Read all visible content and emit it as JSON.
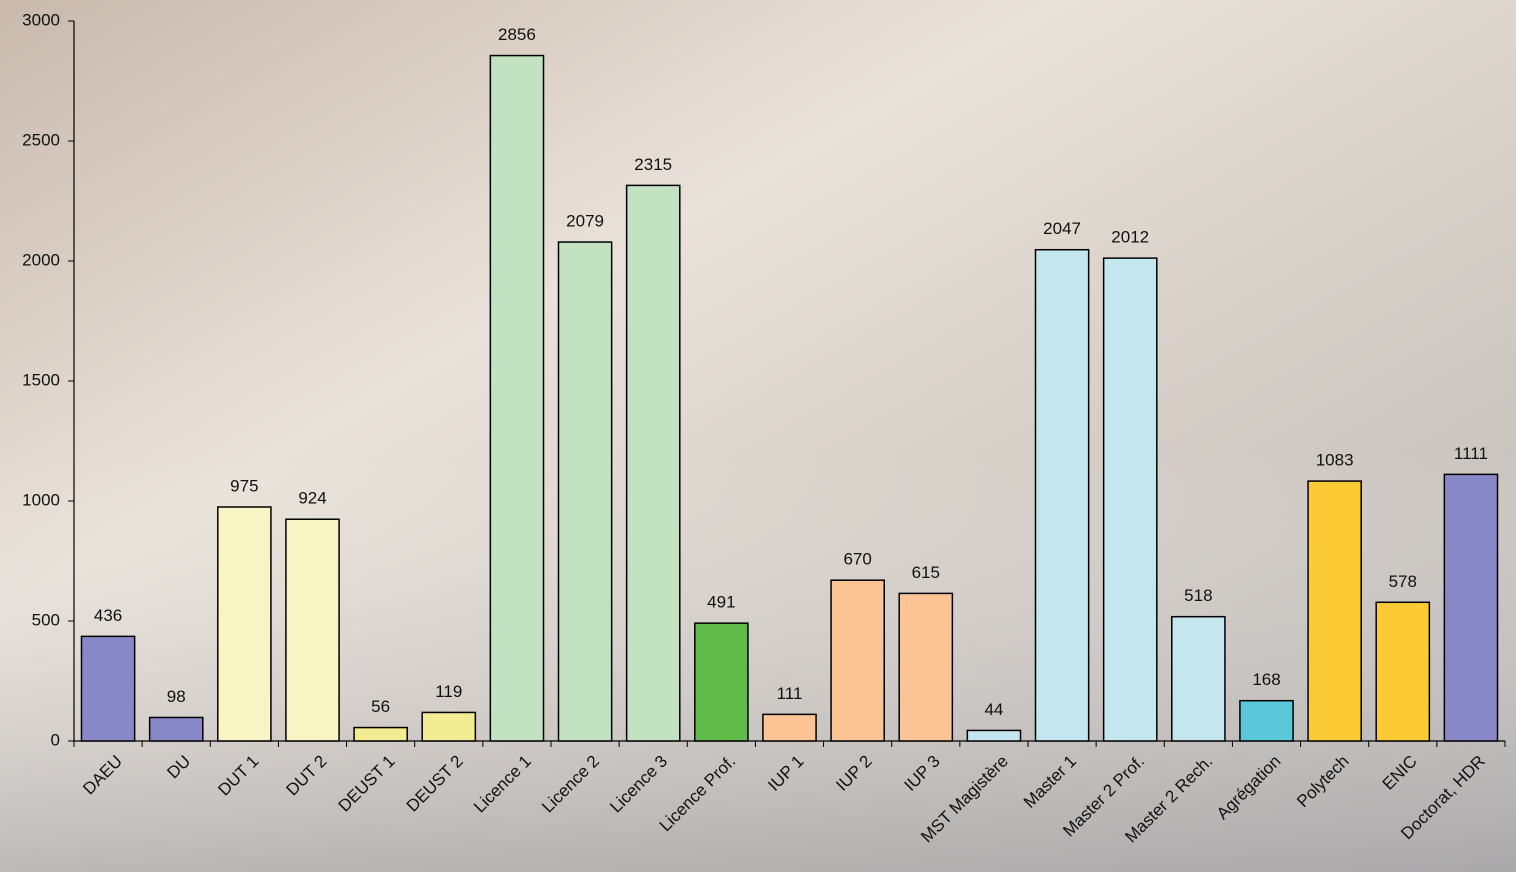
{
  "chart_data": {
    "type": "bar",
    "categories": [
      "DAEU",
      "DU",
      "DUT 1",
      "DUT 2",
      "DEUST 1",
      "DEUST 2",
      "Licence 1",
      "Licence 2",
      "Licence 3",
      "Licence Prof.",
      "IUP 1",
      "IUP 2",
      "IUP 3",
      "MST Magistère",
      "Master 1",
      "Master 2 Prof.",
      "Master 2 Rech.",
      "Agrégation",
      "Polytech",
      "ENIC",
      "Doctorat, HDR"
    ],
    "values": [
      436,
      98,
      975,
      924,
      56,
      119,
      2856,
      2079,
      2315,
      491,
      111,
      670,
      615,
      44,
      2047,
      2012,
      518,
      168,
      1083,
      578,
      1111
    ],
    "colors": [
      "#8888c8",
      "#8888c8",
      "#f8f4c4",
      "#f8f4c4",
      "#f2ec92",
      "#f2ec92",
      "#c2e2c2",
      "#c2e2c2",
      "#c2e2c2",
      "#60bb48",
      "#fcc494",
      "#fcc494",
      "#fcc494",
      "#c4e6ee",
      "#c4e6ee",
      "#c4e6ee",
      "#c4e6ee",
      "#5ac8d8",
      "#fcca34",
      "#fcca34",
      "#8888c8"
    ],
    "ylim": [
      0,
      3000
    ],
    "yticks": [
      0,
      500,
      1000,
      1500,
      2000,
      2500,
      3000
    ]
  }
}
